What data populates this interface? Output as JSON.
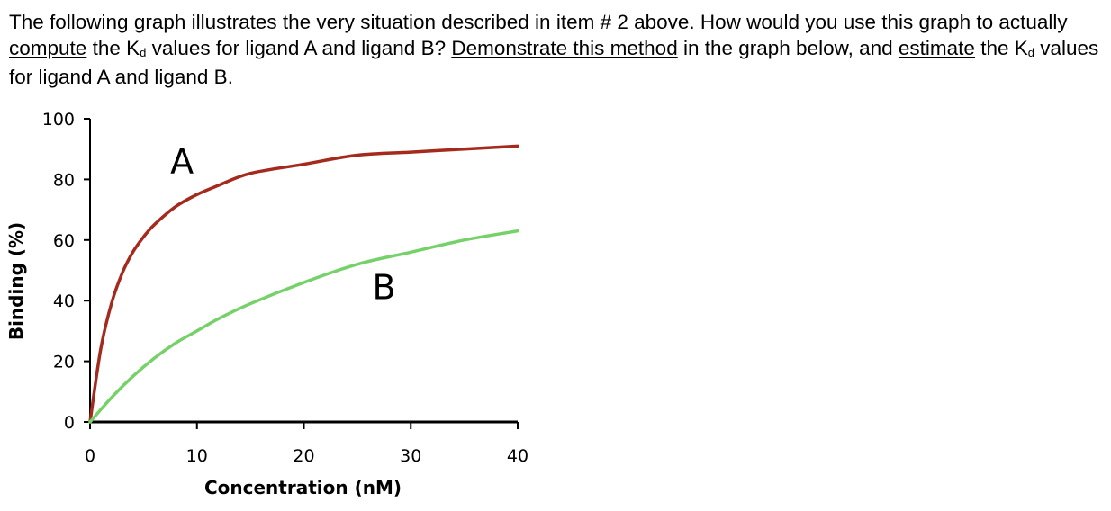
{
  "question": {
    "part1": "The following graph illustrates the very situation described in item # 2 above. How would you use this graph to actually ",
    "compute": "compute",
    "part2": " the K",
    "kd_sub1": "d",
    "part3": " values for ligand A and ligand B? ",
    "demonstrate": "Demonstrate this method",
    "part4": " in the graph below, and ",
    "estimate": "estimate",
    "part5": " the K",
    "kd_sub2": "d",
    "part6": " values for ligand A and ligand B."
  },
  "chart_data": {
    "type": "line",
    "xlabel": "Concentration (nM)",
    "ylabel": "Binding (%)",
    "xlim": [
      0,
      40
    ],
    "ylim": [
      0,
      100
    ],
    "xticks": [
      "0",
      "10",
      "20",
      "30",
      "40"
    ],
    "yticks": [
      "0",
      "20",
      "40",
      "60",
      "80",
      "100"
    ],
    "grid": false,
    "colors": {
      "A": "#a52a1e",
      "B": "#77d16a",
      "axis": "#000000"
    },
    "series": [
      {
        "name": "A",
        "x": [
          0,
          1,
          2,
          3,
          4,
          5,
          6,
          8,
          10,
          12,
          15,
          20,
          25,
          30,
          35,
          40
        ],
        "y": [
          0,
          24,
          39,
          49,
          56,
          61,
          65,
          71,
          75,
          78,
          82,
          85,
          88,
          89,
          90,
          91
        ]
      },
      {
        "name": "B",
        "x": [
          0,
          2,
          4,
          6,
          8,
          10,
          12,
          15,
          20,
          25,
          30,
          35,
          40
        ],
        "y": [
          0,
          8,
          15,
          21,
          26,
          30,
          34,
          39,
          46,
          52,
          56,
          60,
          63
        ]
      }
    ]
  }
}
